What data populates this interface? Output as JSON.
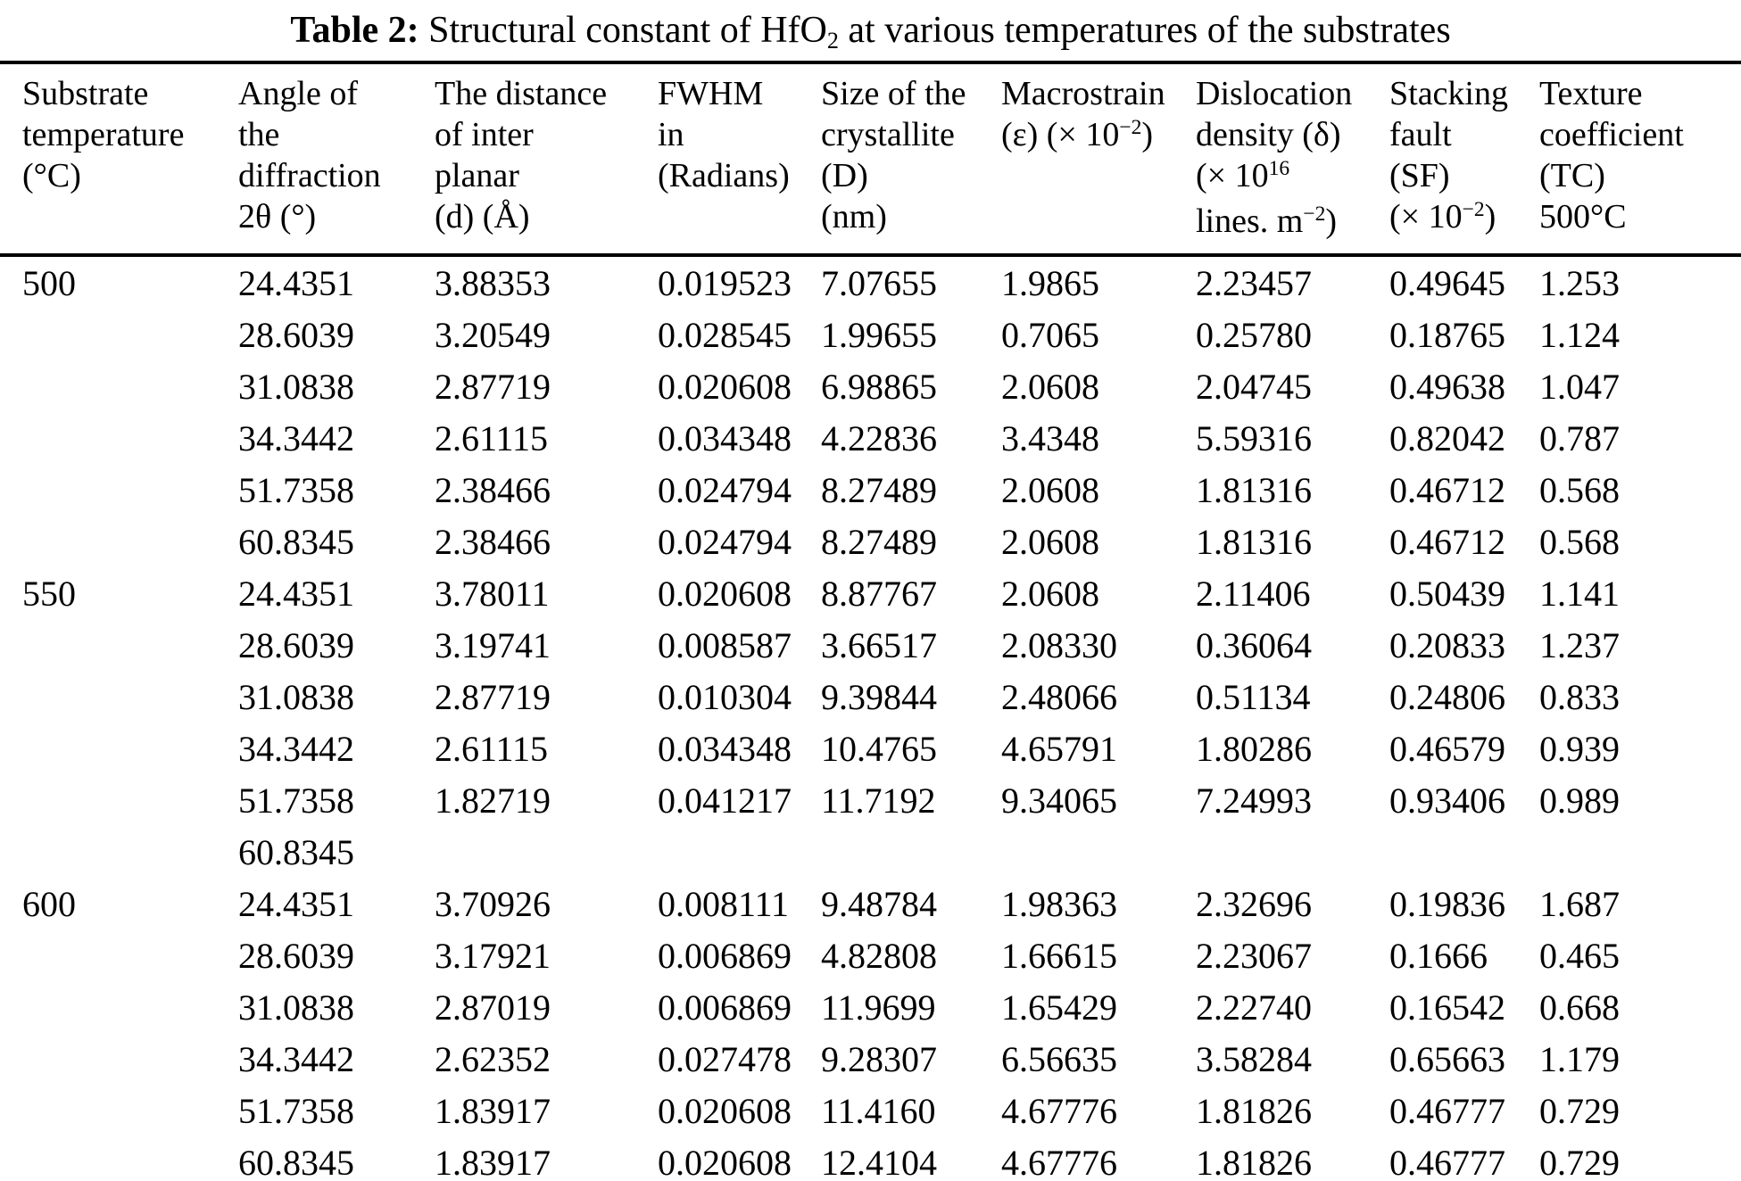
{
  "title": {
    "bold": "Table 2:",
    "segments": [
      {
        "t": " Structural constant of HfO"
      },
      {
        "t": "2",
        "s": "sub"
      },
      {
        "t": " at various temperatures of the substrates"
      }
    ]
  },
  "table": {
    "columns": [
      {
        "id": "substrate-temperature",
        "lines": [
          [
            {
              "t": "Substrate"
            }
          ],
          [
            {
              "t": "temperature"
            }
          ],
          [
            {
              "t": "(°C)"
            }
          ]
        ]
      },
      {
        "id": "diffraction-angle",
        "lines": [
          [
            {
              "t": "Angle of"
            }
          ],
          [
            {
              "t": "the"
            }
          ],
          [
            {
              "t": "diffraction"
            }
          ],
          [
            {
              "t": "2θ (°)"
            }
          ]
        ]
      },
      {
        "id": "interplanar-distance",
        "lines": [
          [
            {
              "t": "The distance"
            }
          ],
          [
            {
              "t": "of inter"
            }
          ],
          [
            {
              "t": "planar"
            }
          ],
          [
            {
              "t": "(d) (Å)"
            }
          ]
        ]
      },
      {
        "id": "fwhm",
        "lines": [
          [
            {
              "t": "FWHM"
            }
          ],
          [
            {
              "t": "in"
            }
          ],
          [
            {
              "t": "(Radians)"
            }
          ]
        ]
      },
      {
        "id": "crystallite-size",
        "lines": [
          [
            {
              "t": "Size of the"
            }
          ],
          [
            {
              "t": "crystallite"
            }
          ],
          [
            {
              "t": "(D)"
            }
          ],
          [
            {
              "t": "(nm)"
            }
          ]
        ]
      },
      {
        "id": "macrostrain",
        "lines": [
          [
            {
              "t": "Macrostrain"
            }
          ],
          [
            {
              "t": "(ε) (× 10"
            },
            {
              "t": "−2",
              "s": "sup"
            },
            {
              "t": ")"
            }
          ]
        ]
      },
      {
        "id": "dislocation-density",
        "lines": [
          [
            {
              "t": "Dislocation"
            }
          ],
          [
            {
              "t": "density (δ)"
            }
          ],
          [
            {
              "t": "(× 10"
            },
            {
              "t": "16",
              "s": "sup"
            }
          ],
          [
            {
              "t": "lines. m"
            },
            {
              "t": "−2",
              "s": "sup"
            },
            {
              "t": ")"
            }
          ]
        ]
      },
      {
        "id": "stacking-fault",
        "lines": [
          [
            {
              "t": "Stacking"
            }
          ],
          [
            {
              "t": "fault"
            }
          ],
          [
            {
              "t": "(SF)"
            }
          ],
          [
            {
              "t": "(× 10"
            },
            {
              "t": "−2",
              "s": "sup"
            },
            {
              "t": ")"
            }
          ]
        ]
      },
      {
        "id": "texture-coefficient",
        "lines": [
          [
            {
              "t": "Texture"
            }
          ],
          [
            {
              "t": "coefficient"
            }
          ],
          [
            {
              "t": "(TC)"
            }
          ],
          [
            {
              "t": "500°C"
            }
          ]
        ]
      }
    ],
    "rows": [
      [
        "500",
        "24.4351",
        "3.88353",
        "0.019523",
        "7.07655",
        "1.9865",
        "2.23457",
        "0.49645",
        "1.253"
      ],
      [
        "",
        "28.6039",
        "3.20549",
        "0.028545",
        "1.99655",
        "0.7065",
        "0.25780",
        "0.18765",
        "1.124"
      ],
      [
        "",
        "31.0838",
        "2.87719",
        "0.020608",
        "6.98865",
        "2.0608",
        "2.04745",
        "0.49638",
        "1.047"
      ],
      [
        "",
        "34.3442",
        "2.61115",
        "0.034348",
        "4.22836",
        "3.4348",
        "5.59316",
        "0.82042",
        "0.787"
      ],
      [
        "",
        "51.7358",
        "2.38466",
        "0.024794",
        "8.27489",
        "2.0608",
        "1.81316",
        "0.46712",
        "0.568"
      ],
      [
        "",
        "60.8345",
        "2.38466",
        "0.024794",
        "8.27489",
        "2.0608",
        "1.81316",
        "0.46712",
        "0.568"
      ],
      [
        "550",
        "24.4351",
        "3.78011",
        "0.020608",
        "8.87767",
        "2.0608",
        "2.11406",
        "0.50439",
        "1.141"
      ],
      [
        "",
        "28.6039",
        "3.19741",
        "0.008587",
        "3.66517",
        "2.08330",
        "0.36064",
        "0.20833",
        "1.237"
      ],
      [
        "",
        "31.0838",
        "2.87719",
        "0.010304",
        "9.39844",
        "2.48066",
        "0.51134",
        "0.24806",
        "0.833"
      ],
      [
        "",
        "34.3442",
        "2.61115",
        "0.034348",
        "10.4765",
        "4.65791",
        "1.80286",
        "0.46579",
        "0.939"
      ],
      [
        "",
        "51.7358",
        "1.82719",
        "0.041217",
        "11.7192",
        "9.34065",
        "7.24993",
        "0.93406",
        "0.989"
      ],
      [
        "",
        "60.8345",
        "",
        "",
        "",
        "",
        "",
        "",
        ""
      ],
      [
        "600",
        "24.4351",
        "3.70926",
        "0.008111",
        "9.48784",
        "1.98363",
        "2.32696",
        "0.19836",
        "1.687"
      ],
      [
        "",
        "28.6039",
        "3.17921",
        "0.006869",
        "4.82808",
        "1.66615",
        "2.23067",
        "0.1666",
        "0.465"
      ],
      [
        "",
        "31.0838",
        "2.87019",
        "0.006869",
        "11.9699",
        "1.65429",
        "2.22740",
        "0.16542",
        "0.668"
      ],
      [
        "",
        "34.3442",
        "2.62352",
        "0.027478",
        "9.28307",
        "6.56635",
        "3.58284",
        "0.65663",
        "1.179"
      ],
      [
        "",
        "51.7358",
        "1.83917",
        "0.020608",
        "11.4160",
        "4.67776",
        "1.81826",
        "0.46777",
        "0.729"
      ],
      [
        "",
        "60.8345",
        "1.83917",
        "0.020608",
        "12.4104",
        "4.67776",
        "1.81826",
        "0.46777",
        "0.729"
      ]
    ]
  }
}
